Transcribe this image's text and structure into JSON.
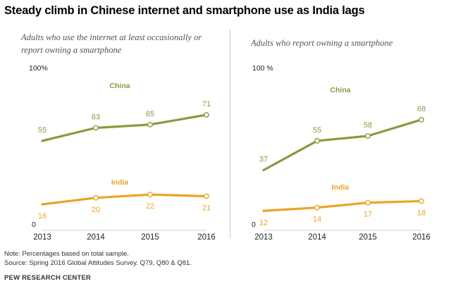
{
  "title": "Steady climb in Chinese internet and smartphone use as India lags",
  "panels": [
    {
      "subtitle": "Adults who use the internet at least occasionally or report owning a smartphone"
    },
    {
      "subtitle": "Adults who report owning a smartphone"
    }
  ],
  "colors": {
    "China": "#8a9a3c",
    "India": "#eda226"
  },
  "chart_data": [
    {
      "type": "line",
      "title": "Adults who use the internet at least occasionally or report owning a smartphone",
      "x": [
        "2013",
        "2014",
        "2015",
        "2016"
      ],
      "series": [
        {
          "name": "China",
          "values": [
            55,
            63,
            65,
            71
          ]
        },
        {
          "name": "India",
          "values": [
            16,
            20,
            22,
            21
          ]
        }
      ],
      "ylim": [
        0,
        100
      ],
      "ytick_labels": [
        "100%",
        "0"
      ],
      "xlabel": "",
      "ylabel": "",
      "grid": false,
      "legend": "inline labels"
    },
    {
      "type": "line",
      "title": "Adults who report owning a smartphone",
      "x": [
        "2013",
        "2014",
        "2015",
        "2016"
      ],
      "series": [
        {
          "name": "China",
          "values": [
            37,
            55,
            58,
            68
          ]
        },
        {
          "name": "India",
          "values": [
            12,
            14,
            17,
            18
          ]
        }
      ],
      "ylim": [
        0,
        100
      ],
      "ytick_labels": [
        "100 %",
        "0"
      ],
      "xlabel": "",
      "ylabel": "",
      "grid": false,
      "legend": "inline labels"
    }
  ],
  "footer": {
    "note": "Note: Percentages based on total sample.",
    "source": "Source: Spring 2016 Global Attitudes Survey. Q79, Q80 & Q81.",
    "brand": "PEW RESEARCH CENTER"
  }
}
